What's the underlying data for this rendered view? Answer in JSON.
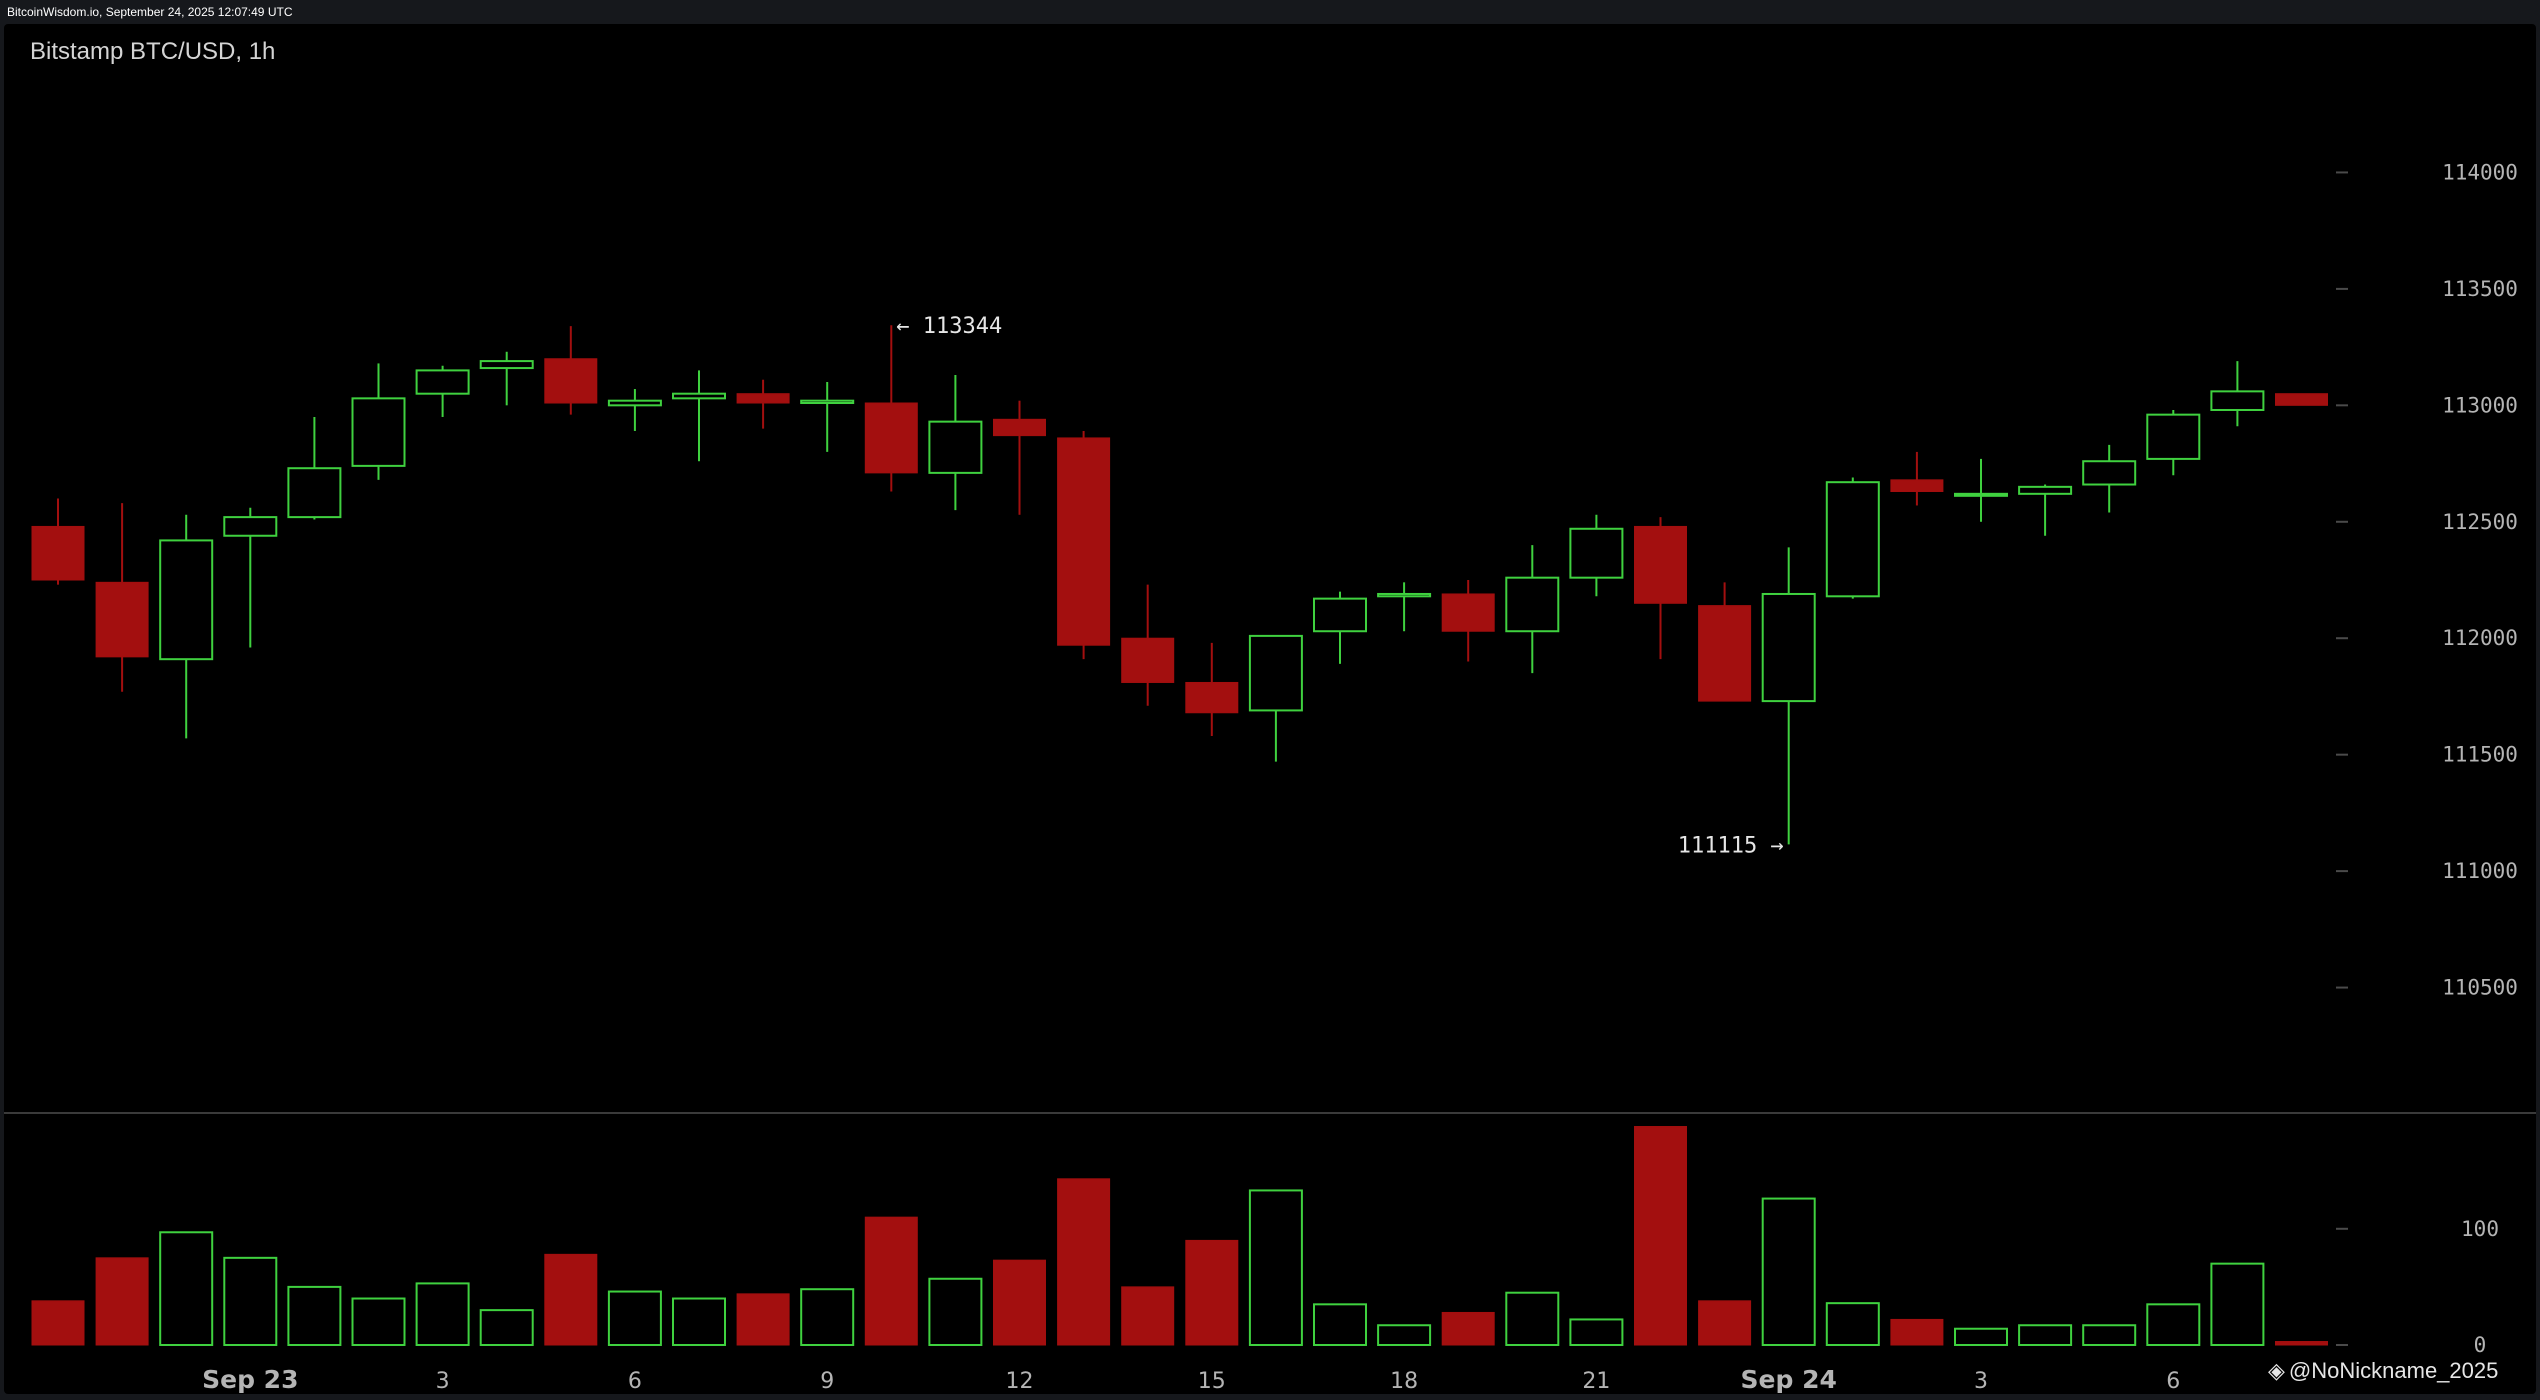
{
  "header": {
    "timestamp_text": "BitcoinWisdom.io, September 24, 2025 12:07:49 UTC"
  },
  "watermark": {
    "icon": "binance-diamond-icon",
    "text": "@NoNickname_2025"
  },
  "colors": {
    "up": "#3fd13f",
    "down": "#a30f0f",
    "axis_text": "#b4b4b4",
    "tick": "#4a4a4a",
    "separator": "#3a3a3a"
  },
  "chart_data": {
    "type": "candlestick",
    "title": "Bitstamp BTC/USD, 1h",
    "price_axis": {
      "ticks": [
        110500,
        111000,
        111500,
        112000,
        112500,
        113000,
        113500,
        114000
      ],
      "range": [
        110000,
        114500
      ],
      "grid": false
    },
    "volume_axis": {
      "ticks": [
        0,
        100
      ],
      "range": [
        0,
        185
      ]
    },
    "x_labels": [
      {
        "index": 3,
        "label": "Sep 23",
        "bold": true
      },
      {
        "index": 6,
        "label": "3"
      },
      {
        "index": 9,
        "label": "6"
      },
      {
        "index": 12,
        "label": "9"
      },
      {
        "index": 15,
        "label": "12"
      },
      {
        "index": 18,
        "label": "15"
      },
      {
        "index": 21,
        "label": "18"
      },
      {
        "index": 24,
        "label": "21"
      },
      {
        "index": 27,
        "label": "Sep 24",
        "bold": true
      },
      {
        "index": 30,
        "label": "3"
      },
      {
        "index": 33,
        "label": "6"
      }
    ],
    "annotations": [
      {
        "index": 13,
        "price": 113344,
        "text": "← 113344",
        "side": "right"
      },
      {
        "index": 27,
        "price": 111115,
        "text": "111115 →",
        "side": "left"
      }
    ],
    "candles": [
      {
        "o": 112480,
        "h": 112600,
        "l": 112230,
        "c": 112250,
        "v": 38
      },
      {
        "o": 112240,
        "h": 112580,
        "l": 111770,
        "c": 111920,
        "v": 75
      },
      {
        "o": 111910,
        "h": 112530,
        "l": 111570,
        "c": 112420,
        "v": 97
      },
      {
        "o": 112440,
        "h": 112560,
        "l": 111960,
        "c": 112520,
        "v": 75
      },
      {
        "o": 112520,
        "h": 112950,
        "l": 112510,
        "c": 112730,
        "v": 50
      },
      {
        "o": 112740,
        "h": 113180,
        "l": 112680,
        "c": 113030,
        "v": 40
      },
      {
        "o": 113050,
        "h": 113170,
        "l": 112950,
        "c": 113150,
        "v": 53
      },
      {
        "o": 113160,
        "h": 113230,
        "l": 113000,
        "c": 113190,
        "v": 30
      },
      {
        "o": 113200,
        "h": 113340,
        "l": 112960,
        "c": 113010,
        "v": 78
      },
      {
        "o": 113000,
        "h": 113070,
        "l": 112890,
        "c": 113020,
        "v": 46
      },
      {
        "o": 113030,
        "h": 113150,
        "l": 112760,
        "c": 113050,
        "v": 40
      },
      {
        "o": 113050,
        "h": 113110,
        "l": 112900,
        "c": 113010,
        "v": 44
      },
      {
        "o": 113010,
        "h": 113100,
        "l": 112800,
        "c": 113020,
        "v": 48
      },
      {
        "o": 113010,
        "h": 113344,
        "l": 112630,
        "c": 112710,
        "v": 110
      },
      {
        "o": 112710,
        "h": 113130,
        "l": 112550,
        "c": 112930,
        "v": 57
      },
      {
        "o": 112940,
        "h": 113020,
        "l": 112530,
        "c": 112870,
        "v": 73
      },
      {
        "o": 112860,
        "h": 112890,
        "l": 111910,
        "c": 111970,
        "v": 143
      },
      {
        "o": 112000,
        "h": 112230,
        "l": 111710,
        "c": 111810,
        "v": 50
      },
      {
        "o": 111810,
        "h": 111980,
        "l": 111580,
        "c": 111680,
        "v": 90
      },
      {
        "o": 111690,
        "h": 112010,
        "l": 111470,
        "c": 112010,
        "v": 133
      },
      {
        "o": 112030,
        "h": 112200,
        "l": 111890,
        "c": 112170,
        "v": 35
      },
      {
        "o": 112180,
        "h": 112240,
        "l": 112030,
        "c": 112190,
        "v": 17
      },
      {
        "o": 112190,
        "h": 112250,
        "l": 111900,
        "c": 112030,
        "v": 28
      },
      {
        "o": 112030,
        "h": 112400,
        "l": 111850,
        "c": 112260,
        "v": 45
      },
      {
        "o": 112260,
        "h": 112530,
        "l": 112180,
        "c": 112470,
        "v": 22
      },
      {
        "o": 112480,
        "h": 112520,
        "l": 111910,
        "c": 112150,
        "v": 188
      },
      {
        "o": 112140,
        "h": 112240,
        "l": 111730,
        "c": 111730,
        "v": 38
      },
      {
        "o": 111730,
        "h": 112390,
        "l": 111115,
        "c": 112190,
        "v": 126
      },
      {
        "o": 112180,
        "h": 112690,
        "l": 112170,
        "c": 112670,
        "v": 36
      },
      {
        "o": 112680,
        "h": 112800,
        "l": 112570,
        "c": 112630,
        "v": 22
      },
      {
        "o": 112620,
        "h": 112770,
        "l": 112500,
        "c": 112620,
        "v": 14
      },
      {
        "o": 112620,
        "h": 112660,
        "l": 112440,
        "c": 112650,
        "v": 17
      },
      {
        "o": 112660,
        "h": 112830,
        "l": 112540,
        "c": 112760,
        "v": 17
      },
      {
        "o": 112770,
        "h": 112980,
        "l": 112700,
        "c": 112960,
        "v": 35
      },
      {
        "o": 112980,
        "h": 113190,
        "l": 112910,
        "c": 113060,
        "v": 70
      },
      {
        "o": 113050,
        "h": 113050,
        "l": 113000,
        "c": 113000,
        "v": 3
      }
    ]
  }
}
